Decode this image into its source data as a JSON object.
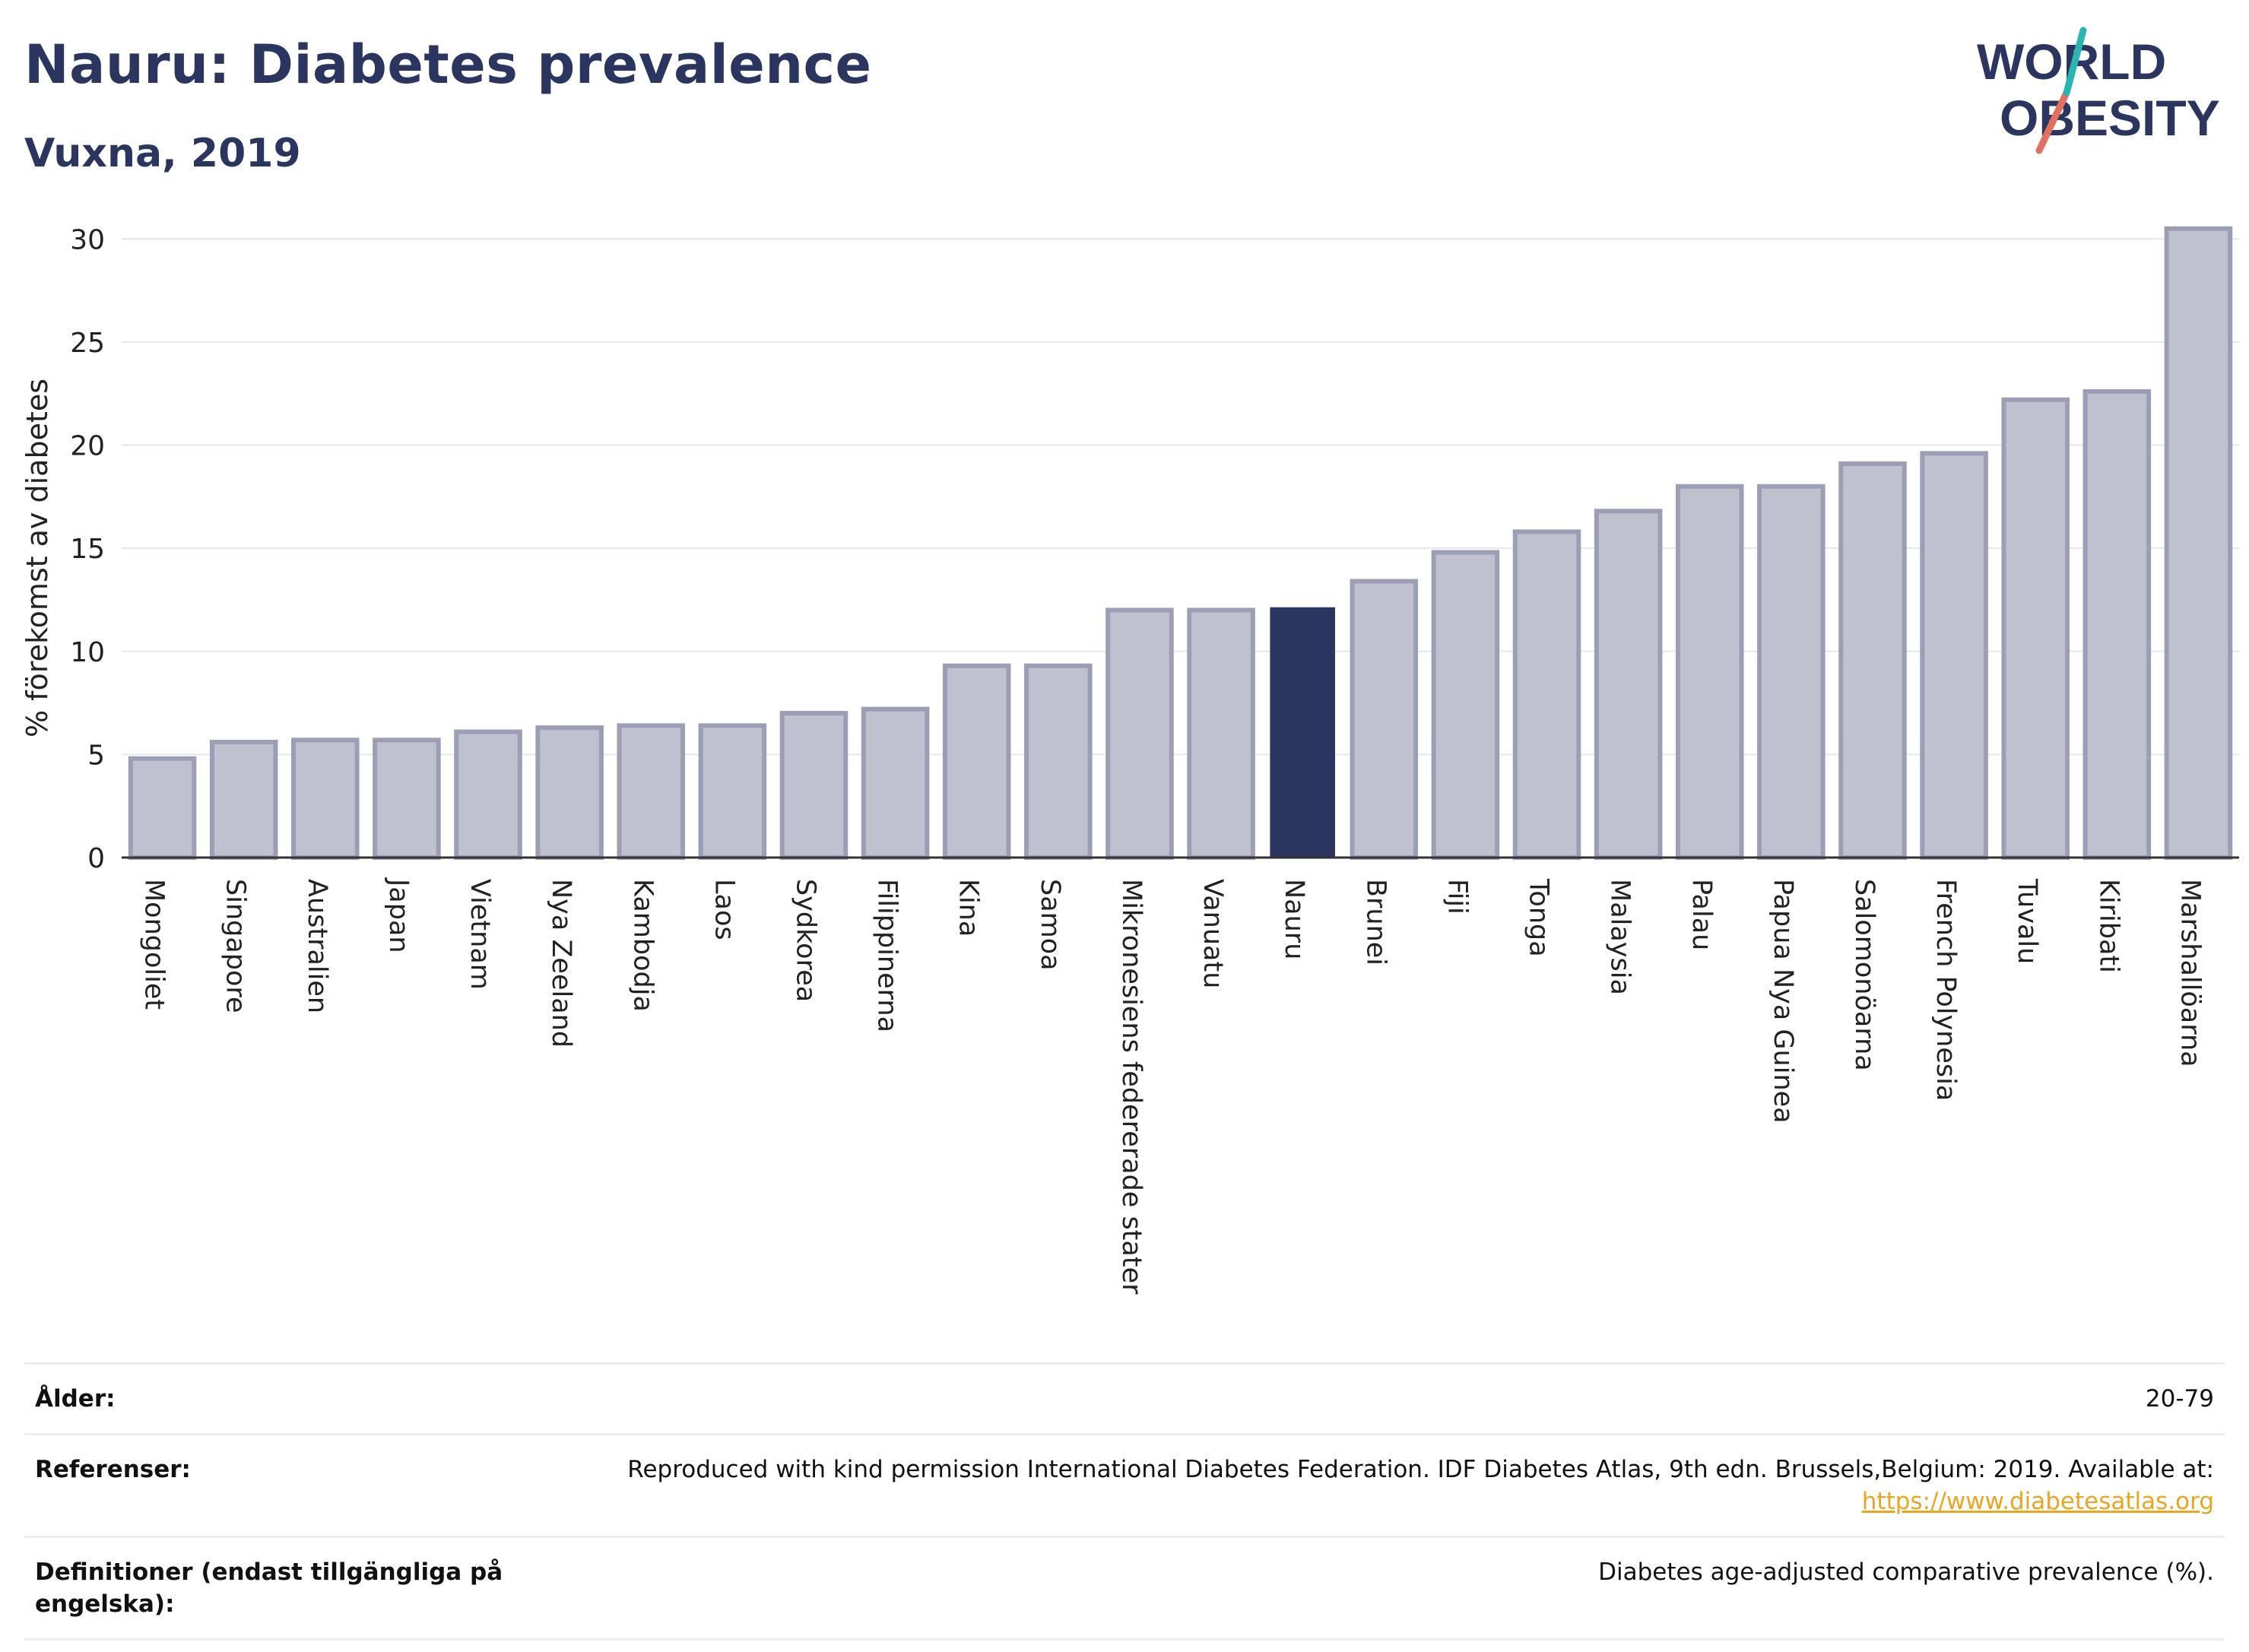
{
  "header": {
    "title": "Nauru: Diabetes prevalence",
    "subtitle": "Vuxna, 2019"
  },
  "logo": {
    "line1": "WORLD",
    "line2": "OBESITY"
  },
  "colors": {
    "bar": "#bfc2ce",
    "bar_border": "#9a9fb5",
    "highlight": "#2a3560",
    "grid": "#e6e6ee",
    "title": "#2a3560"
  },
  "chart_data": {
    "type": "bar",
    "ylabel": "% förekomst av diabetes",
    "xlabel": "",
    "ylim": [
      0,
      32
    ],
    "yticks": [
      0,
      5,
      10,
      15,
      20,
      25,
      30
    ],
    "grid": true,
    "highlight": "Nauru",
    "categories": [
      "Mongoliet",
      "Singapore",
      "Australien",
      "Japan",
      "Vietnam",
      "Nya Zeeland",
      "Kambodja",
      "Laos",
      "Sydkorea",
      "Filippinerna",
      "Kina",
      "Samoa",
      "Mikronesiens federerade stater",
      "Vanuatu",
      "Nauru",
      "Brunei",
      "Fiji",
      "Tonga",
      "Malaysia",
      "Palau",
      "Papua Nya Guinea",
      "Salomonöarna",
      "French Polynesia",
      "Tuvalu",
      "Kiribati",
      "Marshallöarna"
    ],
    "values": [
      4.8,
      5.6,
      5.7,
      5.7,
      6.1,
      6.3,
      6.4,
      6.4,
      7.0,
      7.2,
      9.3,
      9.3,
      12.0,
      12.0,
      12.1,
      13.4,
      14.8,
      15.8,
      16.8,
      18.0,
      18.0,
      19.1,
      19.6,
      22.2,
      22.6,
      30.5
    ]
  },
  "info": {
    "age_label": "Ålder:",
    "age_value": "20-79",
    "refs_label": "Referenser:",
    "refs_value": "Reproduced with kind permission International Diabetes Federation. IDF Diabetes Atlas, 9th edn. Brussels,Belgium: 2019. Available at:",
    "refs_link": "https://www.diabetesatlas.org",
    "defs_label": "Definitioner (endast tillgängliga på engelska):",
    "defs_value": "Diabetes age-adjusted comparative prevalence (%)."
  }
}
